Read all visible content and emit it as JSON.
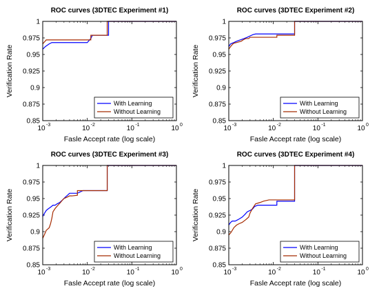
{
  "chart_data": [
    {
      "type": "line",
      "title": "ROC curves (3DTEC Experiment #1)",
      "xlabel": "Fasle Accept rate (log scale)",
      "ylabel": "Verification Rate",
      "xscale": "log",
      "xlim": [
        0.001,
        1
      ],
      "ylim": [
        0.85,
        1
      ],
      "xticks": [
        {
          "base": "10",
          "exp": "-3"
        },
        {
          "base": "10",
          "exp": "-2"
        },
        {
          "base": "10",
          "exp": "-1"
        },
        {
          "base": "10",
          "exp": "0"
        }
      ],
      "yticks": [
        "0.85",
        "0.875",
        "0.9",
        "0.925",
        "0.95",
        "0.975",
        "1"
      ],
      "legend": "bottom-right",
      "grid": false,
      "series": [
        {
          "name": "With Learning",
          "color": "#0000ff",
          "x": [
            0.001,
            0.00115,
            0.0014,
            0.0016,
            0.0019,
            0.01,
            0.012,
            0.013,
            0.03,
            0.03,
            1
          ],
          "y": [
            0.958,
            0.962,
            0.966,
            0.968,
            0.968,
            0.968,
            0.974,
            0.979,
            0.979,
            1.0,
            1.0
          ]
        },
        {
          "name": "Without Learning",
          "color": "#a52a00",
          "x": [
            0.001,
            0.0012,
            0.0013,
            0.012,
            0.012,
            0.028,
            0.028,
            1
          ],
          "y": [
            0.966,
            0.972,
            0.972,
            0.972,
            0.979,
            0.979,
            1.0,
            1.0
          ]
        }
      ]
    },
    {
      "type": "line",
      "title": "ROC curves (3DTEC Experiment #2)",
      "xlabel": "Fasle Accept rate (log scale)",
      "ylabel": "Verification Rate",
      "xscale": "log",
      "xlim": [
        0.001,
        1
      ],
      "ylim": [
        0.85,
        1
      ],
      "xticks": [
        {
          "base": "10",
          "exp": "-3"
        },
        {
          "base": "10",
          "exp": "-2"
        },
        {
          "base": "10",
          "exp": "-1"
        },
        {
          "base": "10",
          "exp": "0"
        }
      ],
      "yticks": [
        "0.85",
        "0.875",
        "0.9",
        "0.925",
        "0.95",
        "0.975",
        "1"
      ],
      "legend": "bottom-right",
      "grid": false,
      "series": [
        {
          "name": "With Learning",
          "color": "#0000ff",
          "x": [
            0.001,
            0.0011,
            0.0013,
            0.0015,
            0.0018,
            0.0022,
            0.0026,
            0.003,
            0.0035,
            0.004,
            0.0045,
            0.012,
            0.03,
            0.03,
            1
          ],
          "y": [
            0.962,
            0.966,
            0.968,
            0.97,
            0.972,
            0.974,
            0.976,
            0.978,
            0.98,
            0.981,
            0.981,
            0.981,
            0.981,
            1.0,
            1.0
          ]
        },
        {
          "name": "Without Learning",
          "color": "#a52a00",
          "x": [
            0.001,
            0.0011,
            0.0012,
            0.0013,
            0.0015,
            0.0019,
            0.0021,
            0.0024,
            0.0028,
            0.003,
            0.0035,
            0.012,
            0.012,
            0.03,
            0.03,
            1
          ],
          "y": [
            0.958,
            0.962,
            0.965,
            0.967,
            0.968,
            0.97,
            0.972,
            0.974,
            0.974,
            0.976,
            0.976,
            0.976,
            0.979,
            0.979,
            1.0,
            1.0
          ]
        }
      ]
    },
    {
      "type": "line",
      "title": "ROC curves (3DTEC Experiment #3)",
      "xlabel": "Fasle Accept rate (log scale)",
      "ylabel": "Verification Rate",
      "xscale": "log",
      "xlim": [
        0.001,
        1
      ],
      "ylim": [
        0.85,
        1
      ],
      "xticks": [
        {
          "base": "10",
          "exp": "-3"
        },
        {
          "base": "10",
          "exp": "-2"
        },
        {
          "base": "10",
          "exp": "-1"
        },
        {
          "base": "10",
          "exp": "0"
        }
      ],
      "yticks": [
        "0.85",
        "0.875",
        "0.9",
        "0.925",
        "0.95",
        "0.975",
        "1"
      ],
      "legend": "bottom-right",
      "grid": false,
      "series": [
        {
          "name": "With Learning",
          "color": "#0000ff",
          "x": [
            0.001,
            0.0011,
            0.0012,
            0.0013,
            0.0015,
            0.0017,
            0.0019,
            0.0021,
            0.0024,
            0.0028,
            0.0032,
            0.0036,
            0.004,
            0.0045,
            0.006,
            0.008,
            0.01,
            0.028,
            0.028,
            1
          ],
          "y": [
            0.923,
            0.928,
            0.932,
            0.934,
            0.937,
            0.94,
            0.94,
            0.942,
            0.944,
            0.948,
            0.952,
            0.955,
            0.958,
            0.958,
            0.958,
            0.962,
            0.962,
            0.962,
            1.0,
            1.0
          ]
        },
        {
          "name": "Without Learning",
          "color": "#a52a00",
          "x": [
            0.001,
            0.0011,
            0.0012,
            0.0013,
            0.0014,
            0.0015,
            0.0016,
            0.0017,
            0.0019,
            0.0022,
            0.0025,
            0.0028,
            0.003,
            0.0035,
            0.004,
            0.0045,
            0.006,
            0.006,
            0.028,
            0.028,
            1
          ],
          "y": [
            0.89,
            0.896,
            0.902,
            0.904,
            0.906,
            0.912,
            0.92,
            0.93,
            0.935,
            0.94,
            0.944,
            0.948,
            0.95,
            0.952,
            0.954,
            0.954,
            0.955,
            0.962,
            0.962,
            1.0,
            1.0
          ]
        }
      ]
    },
    {
      "type": "line",
      "title": "ROC curves (3DTEC Experiment #4)",
      "xlabel": "Fasle Accept rate (log scale)",
      "ylabel": "Verification Rate",
      "xscale": "log",
      "xlim": [
        0.001,
        1
      ],
      "ylim": [
        0.85,
        1
      ],
      "xticks": [
        {
          "base": "10",
          "exp": "-3"
        },
        {
          "base": "10",
          "exp": "-2"
        },
        {
          "base": "10",
          "exp": "-1"
        },
        {
          "base": "10",
          "exp": "0"
        }
      ],
      "yticks": [
        "0.85",
        "0.875",
        "0.9",
        "0.925",
        "0.95",
        "0.975",
        "1"
      ],
      "legend": "bottom-right",
      "grid": false,
      "series": [
        {
          "name": "With Learning",
          "color": "#0000ff",
          "x": [
            0.001,
            0.0011,
            0.0012,
            0.0014,
            0.0016,
            0.0018,
            0.002,
            0.0023,
            0.0026,
            0.003,
            0.0034,
            0.0038,
            0.0045,
            0.0045,
            0.0065,
            0.012,
            0.012,
            0.03,
            0.03,
            1
          ],
          "y": [
            0.91,
            0.914,
            0.916,
            0.916,
            0.918,
            0.92,
            0.922,
            0.926,
            0.93,
            0.932,
            0.934,
            0.938,
            0.94,
            0.94,
            0.94,
            0.94,
            0.946,
            0.946,
            1.0,
            1.0
          ]
        },
        {
          "name": "Without Learning",
          "color": "#a52a00",
          "x": [
            0.001,
            0.0011,
            0.0012,
            0.0013,
            0.0015,
            0.0017,
            0.002,
            0.0024,
            0.0028,
            0.003,
            0.0034,
            0.004,
            0.005,
            0.006,
            0.008,
            0.012,
            0.03,
            0.03,
            1
          ],
          "y": [
            0.895,
            0.898,
            0.902,
            0.906,
            0.91,
            0.912,
            0.914,
            0.918,
            0.922,
            0.928,
            0.935,
            0.942,
            0.944,
            0.946,
            0.948,
            0.948,
            0.948,
            1.0,
            1.0
          ]
        }
      ]
    }
  ]
}
